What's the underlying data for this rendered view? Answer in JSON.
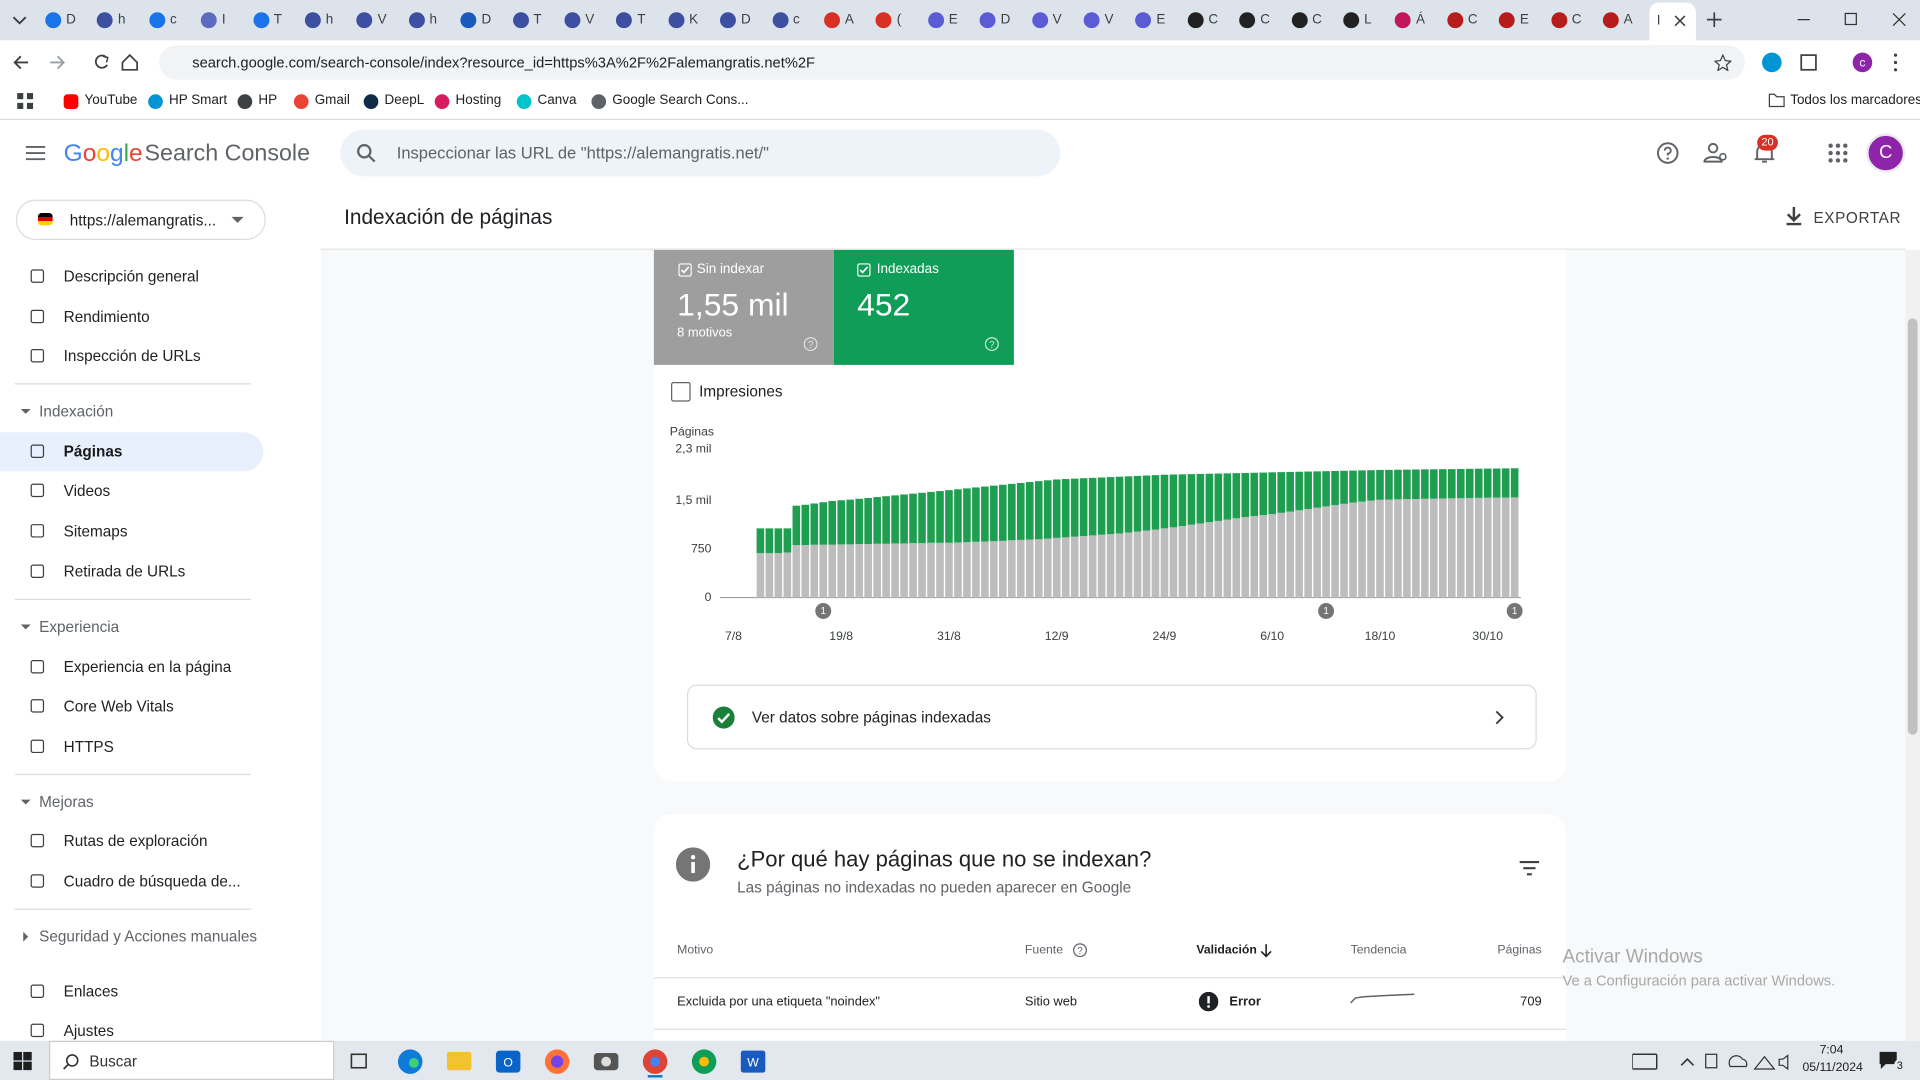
{
  "browser": {
    "tabs": [
      "D",
      "h",
      "c",
      "I",
      "T",
      "h",
      "V",
      "h",
      "D",
      "T",
      "V",
      "T",
      "K",
      "D",
      "c",
      "A",
      "(",
      "E",
      "D",
      "V",
      "V",
      "E",
      "C",
      "C",
      "C",
      "L",
      "Á",
      "C",
      "E",
      "C",
      "A"
    ],
    "active_tab": "I",
    "url": "search.google.com/search-console/index?resource_id=https%3A%2F%2Falemangratis.net%2F",
    "bookmarks": [
      "YouTube",
      "HP Smart",
      "HP",
      "Gmail",
      "DeepL",
      "Hosting",
      "Canva",
      "Google Search Cons..."
    ],
    "all_bookmarks": "Todos los marcadores"
  },
  "header": {
    "logo_google": "Google",
    "logo_product": "Search Console",
    "search_placeholder": "Inspeccionar las URL de \"https://alemangratis.net/\"",
    "notifications": "20",
    "avatar": "C"
  },
  "property": "https://alemangratis...",
  "page_title": "Indexación de páginas",
  "export": "EXPORTAR",
  "sidebar": [
    {
      "label": "Descripción general"
    },
    {
      "label": "Rendimiento"
    },
    {
      "label": "Inspección de URLs"
    },
    {
      "section": "Indexación"
    },
    {
      "label": "Páginas",
      "selected": true
    },
    {
      "label": "Videos"
    },
    {
      "label": "Sitemaps"
    },
    {
      "label": "Retirada de URLs"
    },
    {
      "section": "Experiencia"
    },
    {
      "label": "Experiencia en la página"
    },
    {
      "label": "Core Web Vitals"
    },
    {
      "label": "HTTPS"
    },
    {
      "section": "Mejoras"
    },
    {
      "label": "Rutas de exploración"
    },
    {
      "label": "Cuadro de búsqueda de..."
    },
    {
      "section": "Seguridad y Acciones manuales"
    },
    {
      "label": "Enlaces"
    },
    {
      "label": "Ajustes"
    }
  ],
  "summary": {
    "not_indexed_value": "1,55 mil",
    "not_indexed_reasons": "8 motivos",
    "indexed_value": "452",
    "impressions": "Impresiones"
  },
  "chart_data": {
    "type": "bar",
    "stacked": true,
    "ylabel": "Páginas",
    "ylim": [
      0,
      2300
    ],
    "yticks": [
      0,
      750,
      {
        "value": 1500,
        "label": "1,5 mil"
      },
      {
        "value": 2300,
        "label": "2,3 mil"
      }
    ],
    "categories": [
      "7/8",
      null,
      null,
      null,
      null,
      null,
      null,
      null,
      null,
      null,
      null,
      null,
      "19/8",
      null,
      null,
      null,
      null,
      null,
      null,
      null,
      null,
      null,
      null,
      null,
      "31/8",
      null,
      null,
      null,
      null,
      null,
      null,
      null,
      null,
      null,
      null,
      null,
      "12/9",
      null,
      null,
      null,
      null,
      null,
      null,
      null,
      null,
      null,
      null,
      null,
      "24/9",
      null,
      null,
      null,
      null,
      null,
      null,
      null,
      null,
      null,
      null,
      null,
      "6/10",
      null,
      null,
      null,
      null,
      null,
      null,
      null,
      null,
      null,
      null,
      null,
      "18/10",
      null,
      null,
      null,
      null,
      null,
      null,
      null,
      null,
      null,
      null,
      null,
      "30/10",
      null,
      null,
      null
    ],
    "series": [
      {
        "name": "Sin indexar",
        "color": "#bdbdbd",
        "values": [
          null,
          null,
          null,
          690,
          690,
          690,
          700,
          815,
          815,
          820,
          820,
          820,
          825,
          825,
          830,
          830,
          835,
          835,
          840,
          840,
          845,
          845,
          850,
          850,
          850,
          855,
          860,
          865,
          870,
          875,
          880,
          890,
          895,
          900,
          905,
          915,
          926,
          935,
          945,
          955,
          965,
          975,
          985,
          995,
          1010,
          1025,
          1040,
          1055,
          1074,
          1090,
          1110,
          1130,
          1150,
          1170,
          1190,
          1210,
          1230,
          1250,
          1265,
          1280,
          1296,
          1315,
          1335,
          1355,
          1375,
          1395,
          1415,
          1435,
          1455,
          1475,
          1490,
          1505,
          1518,
          1520,
          1525,
          1528,
          1530,
          1533,
          1535,
          1538,
          1540,
          1542,
          1545,
          1547,
          1550,
          1552,
          1553,
          1555
        ]
      },
      {
        "name": "Indexadas",
        "color": "#1e9e4f",
        "values": [
          null,
          null,
          null,
          384,
          384,
          384,
          374,
          611,
          625,
          640,
          660,
          680,
          685,
          695,
          703,
          716,
          725,
          738,
          746,
          760,
          768,
          781,
          790,
          803,
          817,
          826,
          835,
          844,
          853,
          862,
          871,
          875,
          884,
          893,
          902,
          905,
          907,
          905,
          901,
          897,
          893,
          889,
          885,
          881,
          872,
          863,
          854,
          845,
          833,
          820,
          803,
          786,
          769,
          752,
          735,
          718,
          701,
          684,
          672,
          660,
          648,
          632,
          615,
          598,
          581,
          564,
          547,
          530,
          513,
          496,
          484,
          472,
          463,
          462,
          459,
          458,
          458,
          457,
          456,
          455,
          454,
          454,
          453,
          453,
          452,
          451,
          452,
          452
        ]
      }
    ],
    "annotations": [
      {
        "at": 10,
        "text": "1"
      },
      {
        "at": 66,
        "text": "1"
      },
      {
        "at": 87,
        "text": "1"
      }
    ]
  },
  "indexed_link": "Ver datos sobre páginas indexadas",
  "reasons": {
    "title": "¿Por qué hay páginas que no se indexan?",
    "subtitle": "Las páginas no indexadas no pueden aparecer en Google",
    "columns": [
      "Motivo",
      "Fuente",
      "Validación",
      "Tendencia",
      "Páginas"
    ],
    "rows": [
      [
        "Excluida por una etiqueta \"noindex\"",
        "Sitio web",
        "Error",
        "709"
      ]
    ]
  },
  "watermark": {
    "title": "Activar Windows",
    "text": "Ve a Configuración para activar Windows."
  },
  "taskbar": {
    "search": "Buscar",
    "time": "7:04",
    "date": "05/11/2024",
    "notifications": "3"
  }
}
